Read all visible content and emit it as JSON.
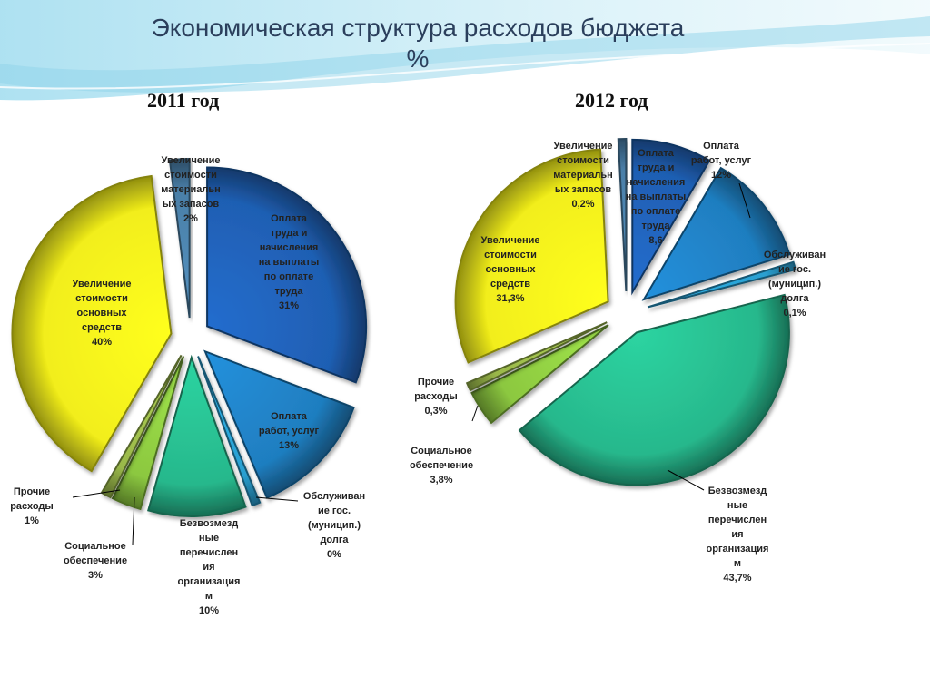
{
  "page": {
    "title": "Экономическая структура расходов бюджета",
    "title_unit": "%",
    "colors": {
      "background_wave": "#9fd9ec",
      "title_text": "#2b3f5c"
    }
  },
  "chart_data": [
    {
      "type": "pie",
      "title": "2011 год",
      "exploded": true,
      "start_angle_deg": 0,
      "slices": [
        {
          "label": "Оплата труда и начисления на выплаты по оплате труда",
          "value": 31,
          "display": "31%",
          "color": "#1f5fb3"
        },
        {
          "label": "Оплата работ, услуг",
          "value": 13,
          "display": "13%",
          "color": "#1f7ec0"
        },
        {
          "label": "Обслуживание гос. (муницип.) долга",
          "value": 0,
          "display": "0%",
          "color": "#2a9fd0"
        },
        {
          "label": "Безвозмездные перечисления организациям",
          "value": 10,
          "display": "10%",
          "color": "#27b88c"
        },
        {
          "label": "Социальное обеспечение",
          "value": 3,
          "display": "3%",
          "color": "#8cc840"
        },
        {
          "label": "Прочие расходы",
          "value": 1,
          "display": "1%",
          "color": "#9ab84a"
        },
        {
          "label": "Увеличение стоимости основных средств",
          "value": 40,
          "display": "40%",
          "color": "#f2ee1a"
        },
        {
          "label": "Увеличение стоимости материальных запасов",
          "value": 2,
          "display": "2%",
          "color": "#4a7fa8"
        }
      ],
      "label_text": [
        [
          "Оплата",
          "труда и",
          "начисления",
          "на выплаты",
          "по оплате",
          "труда",
          "31%"
        ],
        [
          "Оплата",
          "работ, услуг",
          "13%"
        ],
        [
          "Обслуживан",
          "ие гос.",
          "(муницип.)",
          "долга",
          "0%"
        ],
        [
          "Безвозмезд",
          "ные",
          "перечислен",
          "ия",
          "организация",
          "м",
          "10%"
        ],
        [
          "Социальное",
          "обеспечение",
          "3%"
        ],
        [
          "Прочие",
          "расходы",
          "1%"
        ],
        [
          "Увеличение",
          "стоимости",
          "основных",
          "средств",
          "40%"
        ],
        [
          "Увеличение",
          "стоимости",
          "материальн",
          "ых запасов",
          "2%"
        ]
      ]
    },
    {
      "type": "pie",
      "title": "2012 год",
      "exploded": true,
      "start_angle_deg": 0,
      "slices": [
        {
          "label": "Оплата труда и начисления на выплаты по оплате труда",
          "value": 8.6,
          "display": "8,6",
          "color": "#1f5fb3"
        },
        {
          "label": "Оплата работ, услуг",
          "value": 12,
          "display": "12%",
          "color": "#1f7ec0"
        },
        {
          "label": "Обслуживание гос. (муницип.) долга",
          "value": 0.1,
          "display": "0,1%",
          "color": "#2a9fd0"
        },
        {
          "label": "Безвозмездные перечисления организациям",
          "value": 43.7,
          "display": "43,7%",
          "color": "#27b88c"
        },
        {
          "label": "Социальное обеспечение",
          "value": 3.8,
          "display": "3,8%",
          "color": "#8cc840"
        },
        {
          "label": "Прочие расходы",
          "value": 0.3,
          "display": "0,3%",
          "color": "#9ab84a"
        },
        {
          "label": "Увеличение стоимости основных средств",
          "value": 31.3,
          "display": "31,3%",
          "color": "#f2ee1a"
        },
        {
          "label": "Увеличение стоимости материальных запасов",
          "value": 0.2,
          "display": "0,2%",
          "color": "#4a7fa8"
        }
      ],
      "label_text": [
        [
          "Оплата",
          "труда и",
          "начисления",
          "на выплаты",
          "по оплате",
          "труда",
          "8,6"
        ],
        [
          "Оплата",
          "работ, услуг",
          "12%"
        ],
        [
          "Обслуживан",
          "ие гос.",
          "(муницип.)",
          "долга",
          "0,1%"
        ],
        [
          "Безвозмезд",
          "ные",
          "перечислен",
          "ия",
          "организация",
          "м",
          "43,7%"
        ],
        [
          "Социальное",
          "обеспечение",
          "3,8%"
        ],
        [
          "Прочие",
          "расходы",
          "0,3%"
        ],
        [
          "Увеличение",
          "стоимости",
          "основных",
          "средств",
          "31,3%"
        ],
        [
          "Увеличение",
          "стоимости",
          "материальн",
          "ых запасов",
          "0,2%"
        ]
      ]
    }
  ]
}
